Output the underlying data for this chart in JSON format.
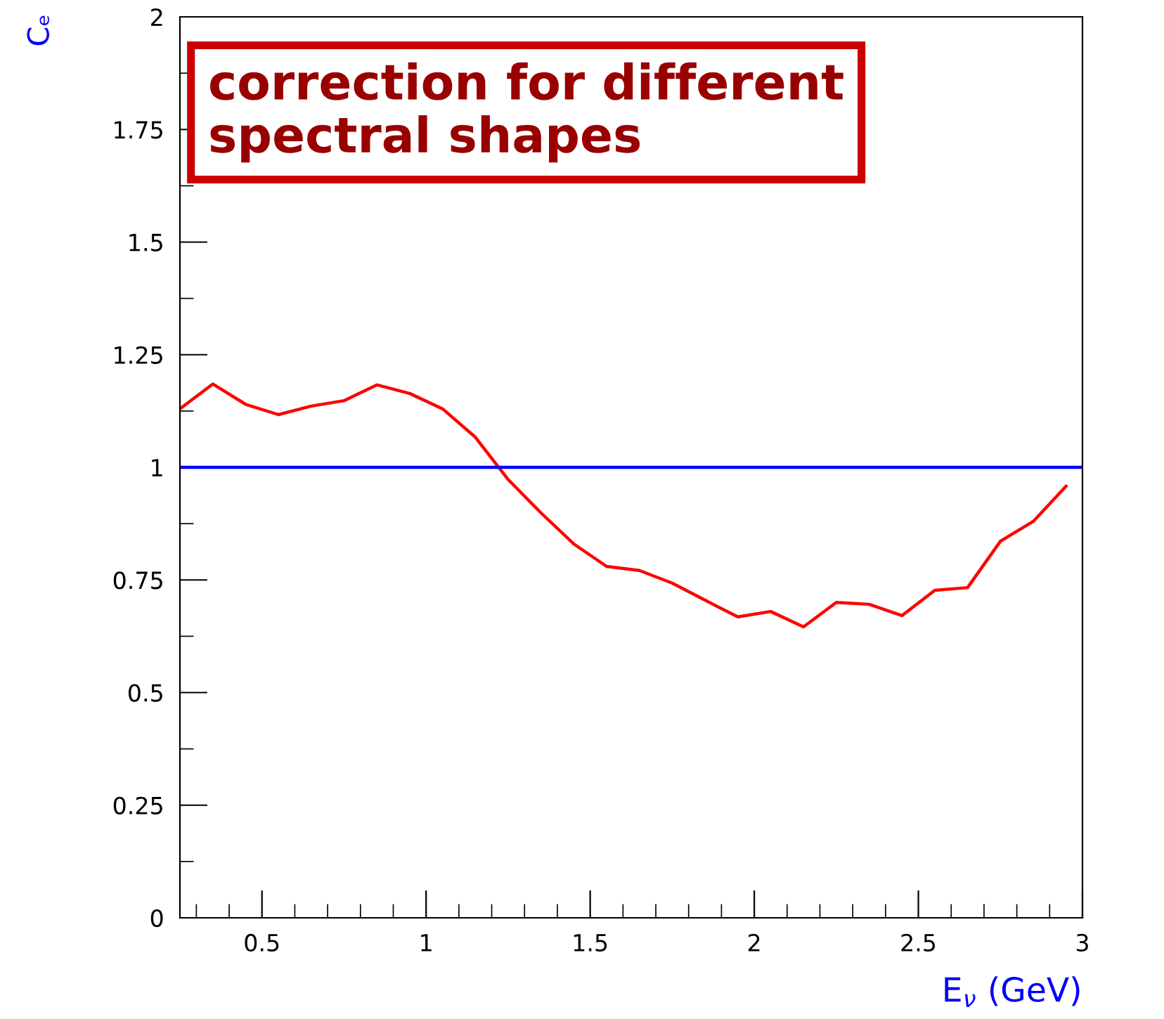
{
  "chart_data": {
    "type": "line",
    "xlabel": "E$_{ν}$ (GeV)",
    "ylabel": "Cₑ",
    "x": [
      0.25,
      0.35,
      0.45,
      0.55,
      0.65,
      0.75,
      0.85,
      0.95,
      1.05,
      1.15,
      1.25,
      1.35,
      1.45,
      1.55,
      1.65,
      1.75,
      1.85,
      1.95,
      2.05,
      2.15,
      2.25,
      2.35,
      2.45,
      2.55,
      2.65,
      2.75,
      2.85,
      2.95
    ],
    "series": [
      {
        "color": "#ff0000",
        "values": [
          1.13,
          1.185,
          1.14,
          1.117,
          1.136,
          1.148,
          1.183,
          1.164,
          1.13,
          1.067,
          0.973,
          0.899,
          0.83,
          0.78,
          0.771,
          0.743,
          0.705,
          0.668,
          0.68,
          0.646,
          0.7,
          0.696,
          0.671,
          0.727,
          0.733,
          0.836,
          0.88,
          0.958
        ]
      }
    ],
    "xlim": [
      0.25,
      3
    ],
    "ylim": [
      0,
      2
    ],
    "xticks": [
      0.5,
      1,
      1.5,
      2,
      2.5,
      3
    ],
    "yticks": [
      0,
      0.25,
      0.5,
      0.75,
      1,
      1.25,
      1.5,
      1.75,
      2
    ],
    "ref_lines": [
      {
        "axis": "y",
        "value": 1,
        "color": "#0000ff"
      }
    ],
    "annotations": [
      "correction for different\nspectral shapes"
    ],
    "grid": false,
    "legend": false
  }
}
